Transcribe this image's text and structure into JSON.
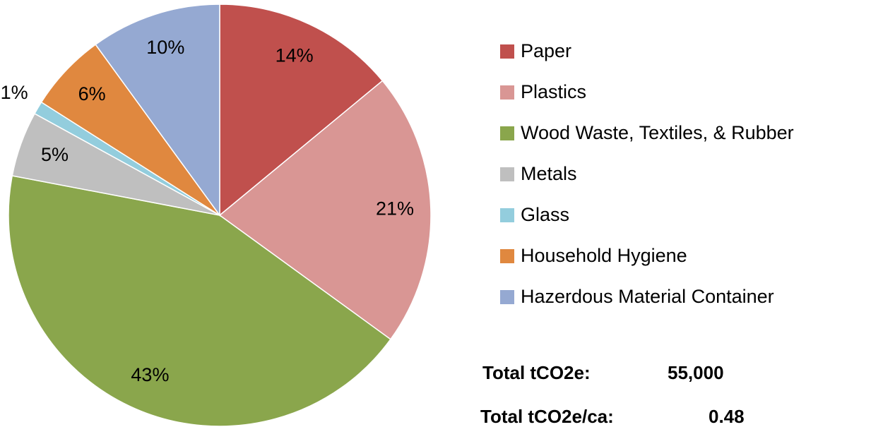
{
  "chart_data": {
    "type": "pie",
    "categories": [
      "Paper",
      "Plastics",
      "Wood Waste, Textiles, & Rubber",
      "Metals",
      "Glass",
      "Household Hygiene",
      "Hazerdous Material Container"
    ],
    "values": [
      14,
      21,
      43,
      5,
      1,
      6,
      10
    ],
    "value_labels": [
      "14%",
      "21%",
      "43%",
      "5%",
      "1%",
      "6%",
      "10%"
    ],
    "colors": [
      "#c0504d",
      "#d99694",
      "#8aa64c",
      "#bfbfbf",
      "#93cddd",
      "#e0883f",
      "#95a9d2"
    ],
    "legend": "right",
    "annotations": [
      {
        "label": "Total tCO2e:",
        "value": "55,000"
      },
      {
        "label": "Total tCO2e/ca:",
        "value": "0.48"
      }
    ]
  }
}
